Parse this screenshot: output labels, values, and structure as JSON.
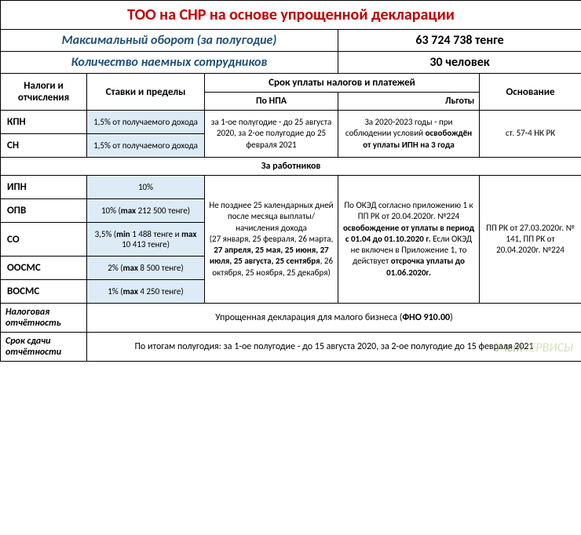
{
  "title": "ТОО на СНР на основе упрощенной декларации",
  "maxTurnover": {
    "label": "Максимальный оборот (за полугодие)",
    "value": "63 724 738 тенге"
  },
  "employees": {
    "label": "Количество наемных сотрудников",
    "value": "30  человек"
  },
  "headers": {
    "taxes": "Налоги и отчисления",
    "rates": "Ставки и пределы",
    "deadline": "Срок уплаты налогов и платежей",
    "basis": "Основание",
    "npa": "По НПА",
    "benefits": "Льготы"
  },
  "kpn": {
    "name": "КПН",
    "rate": "1,5% от получаемого дохода"
  },
  "sn": {
    "name": "СН",
    "rate": "1,5% от получаемого дохода"
  },
  "kpnDeadline": "за 1-ое полугодие - до 25 августа 2020, за 2-ое полугодие до 25 февраля 2021",
  "kpnBenefit": "За 2020-2023 годы - при соблюдении условий <b>освобождён от уплаты ИПН на 3 года</b>",
  "kpnBasis": "ст. 57-4 НК РК",
  "workersHeader": "За работников",
  "ipn": {
    "name": "ИПН",
    "rate": "10%"
  },
  "opv": {
    "name": "ОПВ",
    "rate": "10% (<b>max</b> 212 500 тенге)"
  },
  "so": {
    "name": "СО",
    "rate": "3,5% (<b>min</b> 1 488 тенге и <b>max</b> 10 413 тенге)"
  },
  "oosms": {
    "name": "ООСМС",
    "rate": "2%  (<b>max</b> 8 500 тенге)"
  },
  "vosms": {
    "name": "ВОСМС",
    "rate": "1%  (<b>max</b> 4 250 тенге)"
  },
  "workersDeadline": "Не позднее 25 календарных дней после месяца выплаты/начисления дохода<br>(27 января, 25 февраля, 26 марта, <b>27 апреля, 25 мая, 25 июня, 27 июля, 25 августа, 25 сентября</b>, 26 октября, 25 ноября, 25 декабря)",
  "workersBenefit": "По ОКЭД согласно приложению 1 к ПП РК от 20.04.2020г. №224 <b>освобождение от уплаты в период с 01.04 до 01.10.2020 г.</b> Если ОКЭД не включен в Приложение 1, то действует <b>отсрочка уплаты до 01.06.2020г.</b>",
  "workersBasis": "ПП РК от 27.03.2020г. № 141, ПП РК от 20.04.2020г. №224",
  "taxReport": {
    "label": "Налоговая отчётность",
    "value": "Упрощенная декларация для малого бизнеса (<b>ФНО 910.00</b>)"
  },
  "reportDeadline": {
    "label": "Срок сдачи отчётности",
    "value": "По итогам полугодия: за 1-ое полугодие - до 15 августа 2020, за 2-ое полугодие до 15 февраля 2021"
  },
  "watermark": {
    "part1": "Учет",
    "part2": "СЕРВИСЫ"
  },
  "colors": {
    "title": "#c00000",
    "headerLabel": "#1f4e78",
    "rateBackground": "#ddebf7",
    "border": "#000000"
  }
}
